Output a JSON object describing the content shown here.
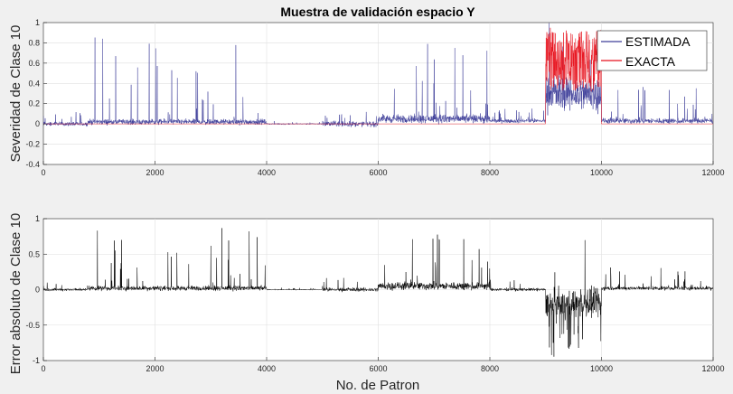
{
  "chart_data": [
    {
      "type": "line",
      "title": "Muestra de validación espacio Y",
      "xlabel": "",
      "ylabel": "Severidad de Clase 10",
      "xlim": [
        0,
        12000
      ],
      "ylim": [
        -0.4,
        1
      ],
      "xticks": [
        0,
        2000,
        4000,
        6000,
        8000,
        10000,
        12000
      ],
      "xtick_labels": [
        "0",
        "2000",
        "4000",
        "6000",
        "8000",
        "10000",
        "12000"
      ],
      "yticks": [
        -0.4,
        -0.2,
        0,
        0.2,
        0.4,
        0.6,
        0.8,
        1
      ],
      "ytick_labels": [
        "-0.4",
        "-0.2",
        "0",
        "0.2",
        "0.4",
        "0.6",
        "0.8",
        "1"
      ],
      "grid": true,
      "legend_position": "top-right",
      "series": [
        {
          "name": "ESTIMADA",
          "color": "#3d3d99",
          "segments": [
            {
              "x_range": [
                0,
                800
              ],
              "baseline": 0.0,
              "noise": 0.03,
              "spike_max": 0.12
            },
            {
              "x_range": [
                800,
                4000
              ],
              "baseline": 0.02,
              "noise": 0.04,
              "spike_max": 0.87
            },
            {
              "x_range": [
                4000,
                5000
              ],
              "baseline": 0.0,
              "noise": 0.01,
              "spike_max": 0.03
            },
            {
              "x_range": [
                5000,
                6000
              ],
              "baseline": 0.0,
              "noise": 0.04,
              "spike_max": 0.12
            },
            {
              "x_range": [
                6000,
                8000
              ],
              "baseline": 0.05,
              "noise": 0.06,
              "spike_max": 0.75
            },
            {
              "x_range": [
                8000,
                9000
              ],
              "baseline": 0.03,
              "noise": 0.03,
              "spike_max": 0.15
            },
            {
              "x_range": [
                9000,
                10000
              ],
              "baseline": 0.3,
              "noise": 0.25,
              "spike_max": 0.85
            },
            {
              "x_range": [
                10000,
                12000
              ],
              "baseline": 0.03,
              "noise": 0.04,
              "spike_max": 0.35
            }
          ]
        },
        {
          "name": "EXACTA",
          "color": "#e8121d",
          "segments": [
            {
              "x_range": [
                0,
                9000
              ],
              "baseline": 0.0,
              "noise": 0.0,
              "spike_max": 0.0
            },
            {
              "x_range": [
                9000,
                10000
              ],
              "baseline": 0.62,
              "noise": 0.3,
              "spike_max": 1.0
            },
            {
              "x_range": [
                10000,
                12000
              ],
              "baseline": 0.0,
              "noise": 0.0,
              "spike_max": 0.0
            }
          ]
        }
      ]
    },
    {
      "type": "line",
      "title": "",
      "xlabel": "No. de Patron",
      "ylabel": "Error absoluto de Clase 10",
      "xlim": [
        0,
        12000
      ],
      "ylim": [
        -1,
        1
      ],
      "xticks": [
        0,
        2000,
        4000,
        6000,
        8000,
        10000,
        12000
      ],
      "xtick_labels": [
        "0",
        "2000",
        "4000",
        "6000",
        "8000",
        "10000",
        "12000"
      ],
      "yticks": [
        -1,
        -0.5,
        0,
        0.5,
        1
      ],
      "ytick_labels": [
        "-1",
        "-0.5",
        "0",
        "0.5",
        "1"
      ],
      "grid": true,
      "series": [
        {
          "color": "#000000",
          "segments": [
            {
              "x_range": [
                0,
                800
              ],
              "baseline": 0.0,
              "noise": 0.03,
              "spike_max": 0.1
            },
            {
              "x_range": [
                800,
                4000
              ],
              "baseline": 0.02,
              "noise": 0.05,
              "spike_max": 0.86
            },
            {
              "x_range": [
                4000,
                5000
              ],
              "baseline": 0.0,
              "noise": 0.01,
              "spike_max": 0.03
            },
            {
              "x_range": [
                5000,
                6000
              ],
              "baseline": 0.0,
              "noise": 0.04,
              "spike_max": 0.2
            },
            {
              "x_range": [
                6000,
                8000
              ],
              "baseline": 0.05,
              "noise": 0.08,
              "spike_max": 0.76
            },
            {
              "x_range": [
                8000,
                9000
              ],
              "baseline": 0.0,
              "noise": 0.03,
              "spike_max": 0.15
            },
            {
              "x_range": [
                9000,
                10000
              ],
              "baseline": -0.2,
              "noise": 0.3,
              "spike_max": 0.95
            },
            {
              "x_range": [
                10000,
                12000
              ],
              "baseline": 0.02,
              "noise": 0.04,
              "spike_max": 0.3
            }
          ]
        }
      ]
    }
  ]
}
